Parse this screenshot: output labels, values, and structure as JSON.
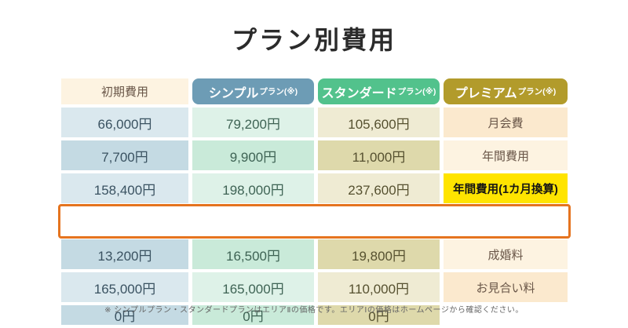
{
  "title": "プラン別費用",
  "table": {
    "columns": [
      {
        "name": "シンプル",
        "suffix": "プラン(※)",
        "color": "#6d9cb5"
      },
      {
        "name": "スタンダード",
        "suffix": "プラン(※)",
        "color": "#52c28c"
      },
      {
        "name": "プレミアム",
        "suffix": "プラン(※)",
        "color": "#b29b2b"
      }
    ],
    "rows": [
      {
        "label": "初期費用",
        "simple": "66,000円",
        "standard": "79,200円",
        "premium": "105,600円"
      },
      {
        "label": "月会費",
        "simple": "7,700円",
        "standard": "9,900円",
        "premium": "11,000円"
      },
      {
        "label": "年間費用",
        "simple": "158,400円",
        "standard": "198,000円",
        "premium": "237,600円"
      },
      {
        "label": "年間費用(1カ月換算)",
        "simple": "13,200円",
        "standard": "16,500円",
        "premium": "19,800円"
      },
      {
        "label": "成婚料",
        "simple": "165,000円",
        "standard": "165,000円",
        "premium": "110,000円"
      },
      {
        "label": "お見合い料",
        "simple": "0円",
        "standard": "0円",
        "premium": "0円"
      }
    ],
    "highlighted_row_index": 3
  },
  "footnote": "※ シンプルプラン・スタンダードプランはエリアⅡの価格です。エリアⅠの価格はホームページから確認ください。",
  "colors": {
    "highlight_background": "#ffe400",
    "highlight_border": "#e5741f",
    "label_column_light": "#fdf3e1",
    "label_column_dark": "#fbe9ce",
    "simple_light": "#dae8ee",
    "simple_dark": "#c4dae3",
    "standard_light": "#def2e8",
    "standard_dark": "#c9ead9",
    "premium_light": "#efebd3",
    "premium_dark": "#ded9ab",
    "title_text": "#2b2b2b"
  }
}
